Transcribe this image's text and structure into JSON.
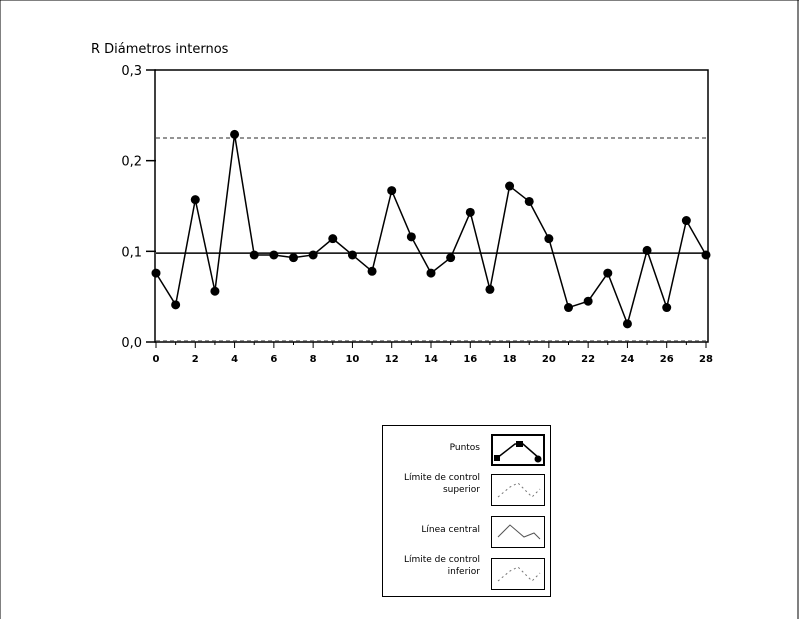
{
  "chart_data": {
    "type": "line",
    "title": "R Diámetros internos",
    "xlabel": "",
    "ylabel": "",
    "xlim": [
      0,
      28
    ],
    "ylim": [
      0.0,
      0.3
    ],
    "yticks": [
      "0,0",
      "0,1",
      "0,2",
      "0,3"
    ],
    "xticks": [
      "0",
      "2",
      "4",
      "6",
      "8",
      "10",
      "12",
      "14",
      "16",
      "18",
      "20",
      "22",
      "24",
      "26",
      "28"
    ],
    "grid": false,
    "x": [
      0,
      1,
      2,
      3,
      4,
      5,
      6,
      7,
      8,
      9,
      10,
      11,
      12,
      13,
      14,
      15,
      16,
      17,
      18,
      19,
      20,
      21,
      22,
      23,
      24,
      25,
      26,
      27,
      28
    ],
    "series": [
      {
        "name": "Puntos",
        "values": [
          0.076,
          0.041,
          0.157,
          0.056,
          0.229,
          0.096,
          0.096,
          0.093,
          0.096,
          0.114,
          0.096,
          0.078,
          0.167,
          0.116,
          0.076,
          0.093,
          0.143,
          0.058,
          0.172,
          0.155,
          0.114,
          0.038,
          0.045,
          0.076,
          0.02,
          0.101,
          0.038,
          0.134,
          0.096
        ]
      }
    ],
    "control_lines": {
      "upper": 0.225,
      "center": 0.098,
      "lower": 0.0
    },
    "legend": {
      "position": "bottom-center",
      "entries": [
        {
          "label": "Puntos"
        },
        {
          "label": "Límite de control\nsuperior"
        },
        {
          "label": "Línea central"
        },
        {
          "label": "Límite de control\ninferior"
        }
      ]
    },
    "colors": {
      "line": "#000000",
      "background": "#ffffff"
    }
  }
}
